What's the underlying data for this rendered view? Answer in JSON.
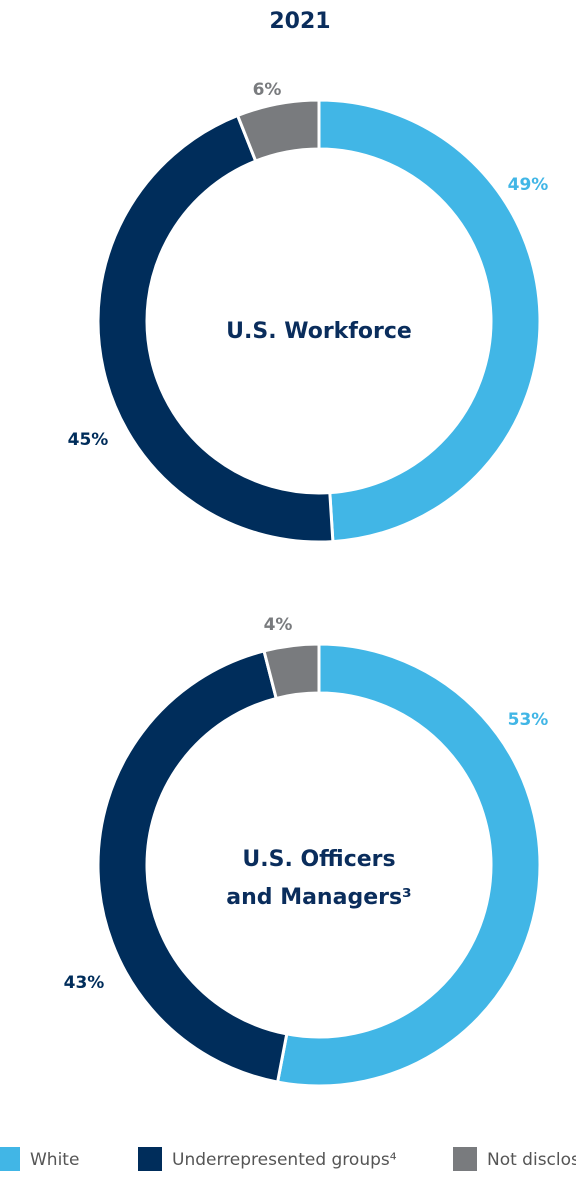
{
  "title": "2021",
  "chart_data": [
    {
      "type": "pie",
      "center_label": [
        "U.S. Workforce"
      ],
      "categories": [
        "White",
        "Underrepresented groups⁴",
        "Not disclosed"
      ],
      "values": [
        49,
        45,
        6
      ],
      "value_labels": [
        "49%",
        "45%",
        "6%"
      ],
      "colors": [
        "#41b6e6",
        "#002d5b",
        "#797b7e"
      ]
    },
    {
      "type": "pie",
      "center_label": [
        "U.S. Officers",
        "and Managers³"
      ],
      "categories": [
        "White",
        "Underrepresented groups⁴",
        "Not disclosed"
      ],
      "values": [
        53,
        43,
        4
      ],
      "value_labels": [
        "53%",
        "43%",
        "4%"
      ],
      "colors": [
        "#41b6e6",
        "#002d5b",
        "#797b7e"
      ]
    }
  ]
}
